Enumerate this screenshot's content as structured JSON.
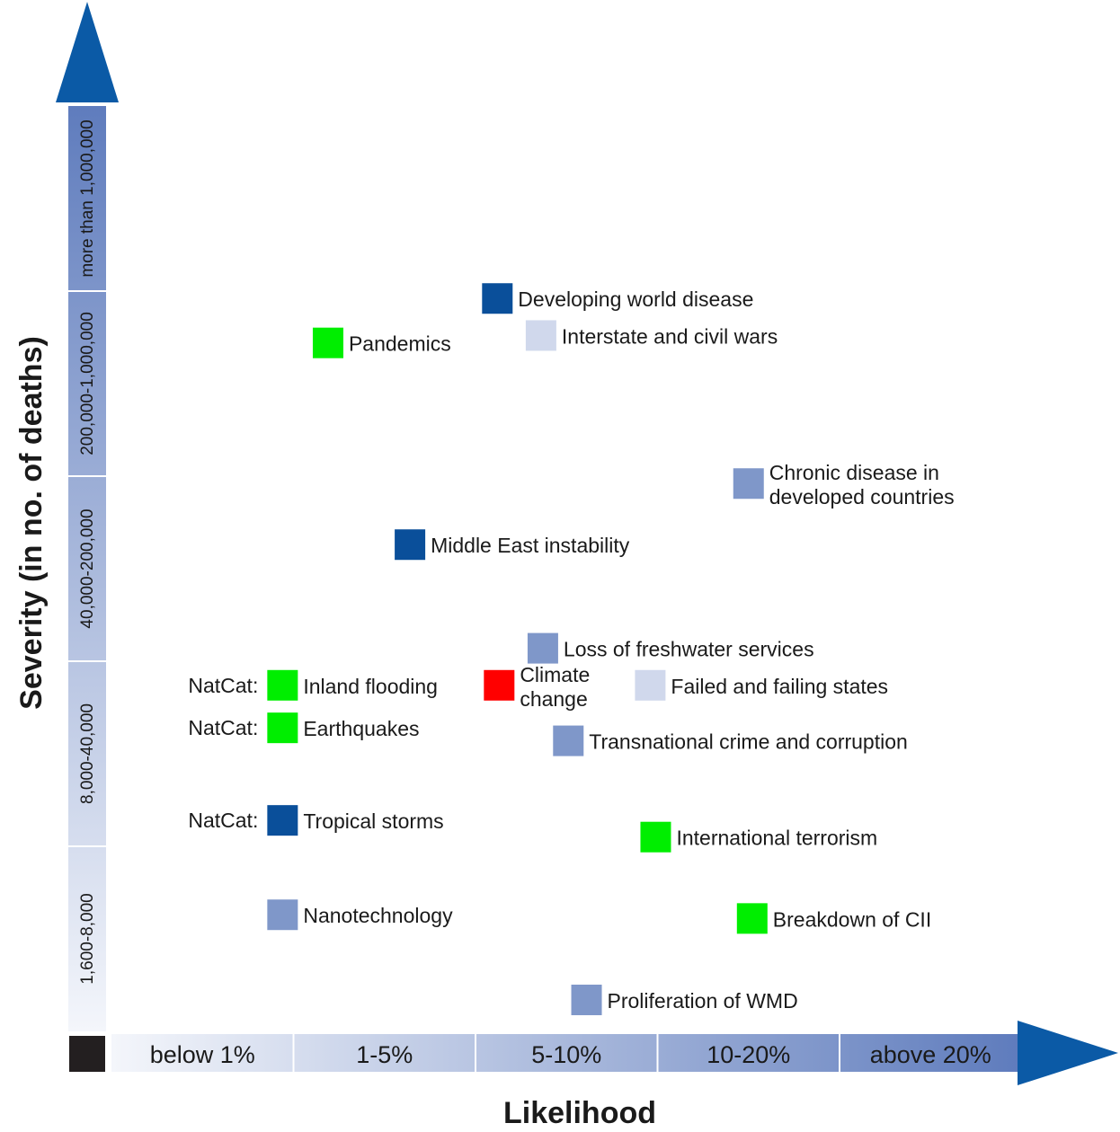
{
  "chart_data": {
    "type": "scatter",
    "xlabel": "Likelihood",
    "ylabel": "Severity (in no. of deaths)",
    "x_categories": [
      "below 1%",
      "1-5%",
      "5-10%",
      "10-20%",
      "above 20%"
    ],
    "y_categories": [
      "1,600-8,000",
      "8,000-40,000",
      "40,000-200,000",
      "200,000-1,000,000",
      "more than 1,000,000"
    ],
    "colors": {
      "dark_blue": "#0a4f9a",
      "medium_blue": "#7f97c9",
      "light_blue": "#d0d8ec",
      "green": "#00ee00",
      "red": "#ff0000",
      "arrow": "#0b5aa6",
      "origin_box": "#231f20"
    },
    "points": [
      {
        "label": "Developing world disease",
        "x": 2.12,
        "y": 3.96,
        "color": "dark_blue"
      },
      {
        "label": "Interstate and civil wars",
        "x": 2.36,
        "y": 3.76,
        "color": "light_blue"
      },
      {
        "label": "Pandemics",
        "x": 1.19,
        "y": 3.72,
        "color": "green"
      },
      {
        "label": "Chronic disease in developed countries",
        "x": 3.5,
        "y": 2.96,
        "color": "medium_blue"
      },
      {
        "label": "Middle East instability",
        "x": 1.64,
        "y": 2.63,
        "color": "dark_blue"
      },
      {
        "label": "Loss of freshwater services",
        "x": 2.37,
        "y": 2.07,
        "color": "medium_blue"
      },
      {
        "label": "Climate change",
        "x": 2.13,
        "y": 1.87,
        "color": "red"
      },
      {
        "label": "Failed and failing states",
        "x": 2.96,
        "y": 1.87,
        "color": "light_blue"
      },
      {
        "label": "Inland flooding",
        "x": 0.94,
        "y": 1.87,
        "color": "green",
        "prefix": "NatCat:"
      },
      {
        "label": "Earthquakes",
        "x": 0.94,
        "y": 1.64,
        "color": "green",
        "prefix": "NatCat:"
      },
      {
        "label": "Transnational crime and corruption",
        "x": 2.51,
        "y": 1.57,
        "color": "medium_blue"
      },
      {
        "label": "Tropical storms",
        "x": 0.94,
        "y": 1.14,
        "color": "dark_blue",
        "prefix": "NatCat:"
      },
      {
        "label": "International terrorism",
        "x": 2.99,
        "y": 1.05,
        "color": "green"
      },
      {
        "label": "Nanotechnology",
        "x": 0.94,
        "y": 0.63,
        "color": "medium_blue"
      },
      {
        "label": "Breakdown of CII",
        "x": 3.52,
        "y": 0.61,
        "color": "green"
      },
      {
        "label": "Proliferation of WMD",
        "x": 2.61,
        "y": 0.17,
        "color": "medium_blue"
      }
    ]
  }
}
